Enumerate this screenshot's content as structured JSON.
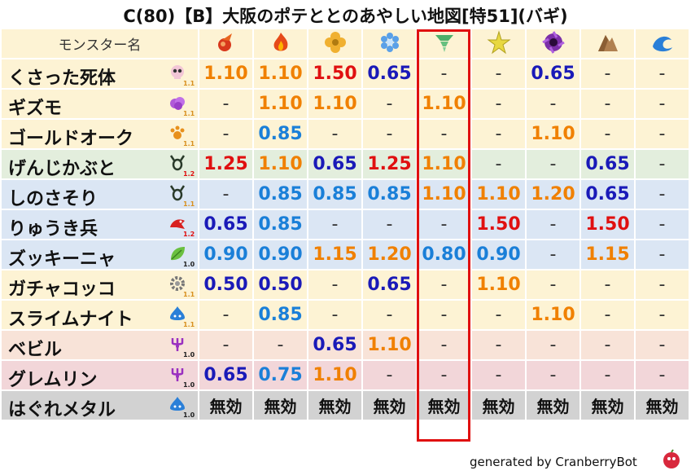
{
  "title": "C(80)【B】大阪のポテととのあやしい地図[特51](バギ)",
  "header": {
    "name_col": "モンスター名"
  },
  "element_icons": [
    "fire-icon",
    "flame-icon",
    "earth-icon",
    "ice-icon",
    "wind-icon",
    "light-icon",
    "dark-icon",
    "rock-icon",
    "water-icon"
  ],
  "colors": {
    "1.50": "#e01010",
    "1.25": "#e01010",
    "1.20": "#f08000",
    "1.15": "#f08000",
    "1.10": "#f08000",
    "0.90": "#1a7fd8",
    "0.85": "#1a7fd8",
    "0.80": "#1a7fd8",
    "0.75": "#1a7fd8",
    "0.65": "#1a1ab8",
    "0.50": "#1a1ab8",
    "-": "#333333",
    "無効": "#111111"
  },
  "rows": [
    {
      "name": "くさった死体",
      "icon": "skull-icon",
      "level": "1.1",
      "bg": "#fdf3d4",
      "values": [
        "1.10",
        "1.10",
        "1.50",
        "0.65",
        "-",
        "-",
        "0.65",
        "-",
        "-"
      ]
    },
    {
      "name": "ギズモ",
      "icon": "gas-cloud-icon",
      "level": "1.1",
      "bg": "#fdf3d4",
      "values": [
        "-",
        "1.10",
        "1.10",
        "-",
        "1.10",
        "-",
        "-",
        "-",
        "-"
      ]
    },
    {
      "name": "ゴールドオーク",
      "icon": "paw-icon",
      "level": "1.1",
      "bg": "#fdf3d4",
      "values": [
        "-",
        "0.85",
        "-",
        "-",
        "-",
        "-",
        "1.10",
        "-",
        "-"
      ]
    },
    {
      "name": "げんじかぶと",
      "icon": "insect-icon",
      "level": "1.2",
      "bg": "#e3eedd",
      "values": [
        "1.25",
        "1.10",
        "0.65",
        "1.25",
        "1.10",
        "-",
        "-",
        "0.65",
        "-"
      ]
    },
    {
      "name": "しのさそり",
      "icon": "insect-icon",
      "level": "1.1",
      "bg": "#dbe6f4",
      "values": [
        "-",
        "0.85",
        "0.85",
        "0.85",
        "1.10",
        "1.10",
        "1.20",
        "0.65",
        "-"
      ]
    },
    {
      "name": "りゅうき兵",
      "icon": "dragon-icon",
      "level": "1.2",
      "bg": "#dbe6f4",
      "values": [
        "0.65",
        "0.85",
        "-",
        "-",
        "-",
        "1.50",
        "-",
        "1.50",
        "-"
      ]
    },
    {
      "name": "ズッキーニャ",
      "icon": "leaf-icon",
      "level": "1.0",
      "bg": "#dbe6f4",
      "values": [
        "0.90",
        "0.90",
        "1.15",
        "1.20",
        "0.80",
        "0.90",
        "-",
        "1.15",
        "-"
      ]
    },
    {
      "name": "ガチャコッコ",
      "icon": "gear-icon",
      "level": "1.1",
      "bg": "#fdf3d4",
      "values": [
        "0.50",
        "0.50",
        "-",
        "0.65",
        "-",
        "1.10",
        "-",
        "-",
        "-"
      ]
    },
    {
      "name": "スライムナイト",
      "icon": "slime-icon",
      "level": "1.1",
      "bg": "#fdf3d4",
      "values": [
        "-",
        "0.85",
        "-",
        "-",
        "-",
        "-",
        "1.10",
        "-",
        "-"
      ]
    },
    {
      "name": "ベビル",
      "icon": "trident-icon",
      "level": "1.0",
      "bg": "#f8e3d8",
      "values": [
        "-",
        "-",
        "0.65",
        "1.10",
        "-",
        "-",
        "-",
        "-",
        "-"
      ]
    },
    {
      "name": "グレムリン",
      "icon": "trident-icon",
      "level": "1.0",
      "bg": "#f2d6d9",
      "values": [
        "0.65",
        "0.75",
        "1.10",
        "-",
        "-",
        "-",
        "-",
        "-",
        "-"
      ]
    },
    {
      "name": "はぐれメタル",
      "icon": "slime-icon",
      "level": "1.0",
      "bg": "#d2d2d2",
      "values": [
        "無効",
        "無効",
        "無効",
        "無効",
        "無効",
        "無効",
        "無効",
        "無効",
        "無効"
      ]
    }
  ],
  "footer": "generated by CranberryBot"
}
